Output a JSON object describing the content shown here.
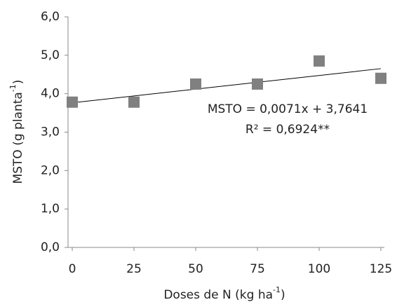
{
  "chart_data": {
    "type": "scatter",
    "x_label": [
      "Doses de N (kg ha",
      "-1",
      ")"
    ],
    "y_label": [
      "MSTO (g planta",
      "-1",
      ")"
    ],
    "x": [
      0,
      25,
      50,
      75,
      100,
      125
    ],
    "values": [
      3.78,
      3.78,
      4.25,
      4.25,
      4.85,
      4.4
    ],
    "color": "#808080",
    "xlim": [
      0,
      125
    ],
    "xticks": [
      0,
      25,
      50,
      75,
      100,
      125
    ],
    "ylim": [
      0,
      6
    ],
    "yticks": [
      {
        "value": 0,
        "label": "0,0"
      },
      {
        "value": 1,
        "label": "1,0"
      },
      {
        "value": 2,
        "label": "2,0"
      },
      {
        "value": 3,
        "label": "3,0"
      },
      {
        "value": 4,
        "label": "4,0"
      },
      {
        "value": 5,
        "label": "5,0"
      },
      {
        "value": 6,
        "label": "6,0"
      }
    ],
    "trendline": {
      "slope": 0.0071,
      "intercept": 3.7641,
      "color": "#000000"
    },
    "annotations": [
      "MSTO = 0,0071x + 3,7641",
      "R² = 0,6924**"
    ]
  }
}
